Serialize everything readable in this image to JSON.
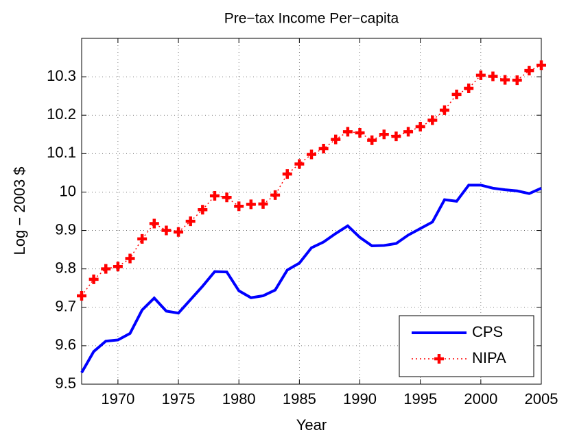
{
  "chart_data": {
    "type": "line",
    "title": "Pre−tax Income Per−capita",
    "x_label": "Year",
    "y_label": "Log − 2003 $",
    "x": [
      1967,
      1968,
      1969,
      1970,
      1971,
      1972,
      1973,
      1974,
      1975,
      1976,
      1977,
      1978,
      1979,
      1980,
      1981,
      1982,
      1983,
      1984,
      1985,
      1986,
      1987,
      1988,
      1989,
      1990,
      1991,
      1992,
      1993,
      1994,
      1995,
      1996,
      1997,
      1998,
      1999,
      2000,
      2001,
      2002,
      2003,
      2004,
      2005
    ],
    "series": [
      {
        "name": "CPS",
        "color": "#0000ff",
        "values": [
          9.53,
          9.585,
          9.612,
          9.615,
          9.632,
          9.693,
          9.724,
          9.69,
          9.685,
          9.72,
          9.755,
          9.793,
          9.792,
          9.743,
          9.725,
          9.73,
          9.745,
          9.797,
          9.815,
          9.855,
          9.87,
          9.892,
          9.912,
          9.882,
          9.86,
          9.861,
          9.866,
          9.888,
          9.905,
          9.922,
          9.98,
          9.976,
          10.018,
          10.018,
          10.01,
          10.006,
          10.003,
          9.996,
          10.01
        ]
      },
      {
        "name": "NIPA",
        "color": "#ff0000",
        "values": [
          9.73,
          9.773,
          9.8,
          9.806,
          9.827,
          9.878,
          9.918,
          9.9,
          9.896,
          9.924,
          9.954,
          9.99,
          9.986,
          9.963,
          9.968,
          9.969,
          9.992,
          10.047,
          10.073,
          10.098,
          10.113,
          10.137,
          10.157,
          10.154,
          10.135,
          10.15,
          10.145,
          10.157,
          10.17,
          10.187,
          10.213,
          10.254,
          10.27,
          10.304,
          10.301,
          10.292,
          10.291,
          10.316,
          10.33
        ]
      }
    ],
    "xlim": [
      1967,
      2005
    ],
    "xticks": [
      1970,
      1975,
      1980,
      1985,
      1990,
      1995,
      2000,
      2005
    ],
    "ylim": [
      9.5,
      10.4
    ],
    "yticks": [
      9.5,
      9.6,
      9.7,
      9.8,
      9.9,
      10,
      10.1,
      10.2,
      10.3
    ],
    "grid": true,
    "legend": "lower right"
  }
}
